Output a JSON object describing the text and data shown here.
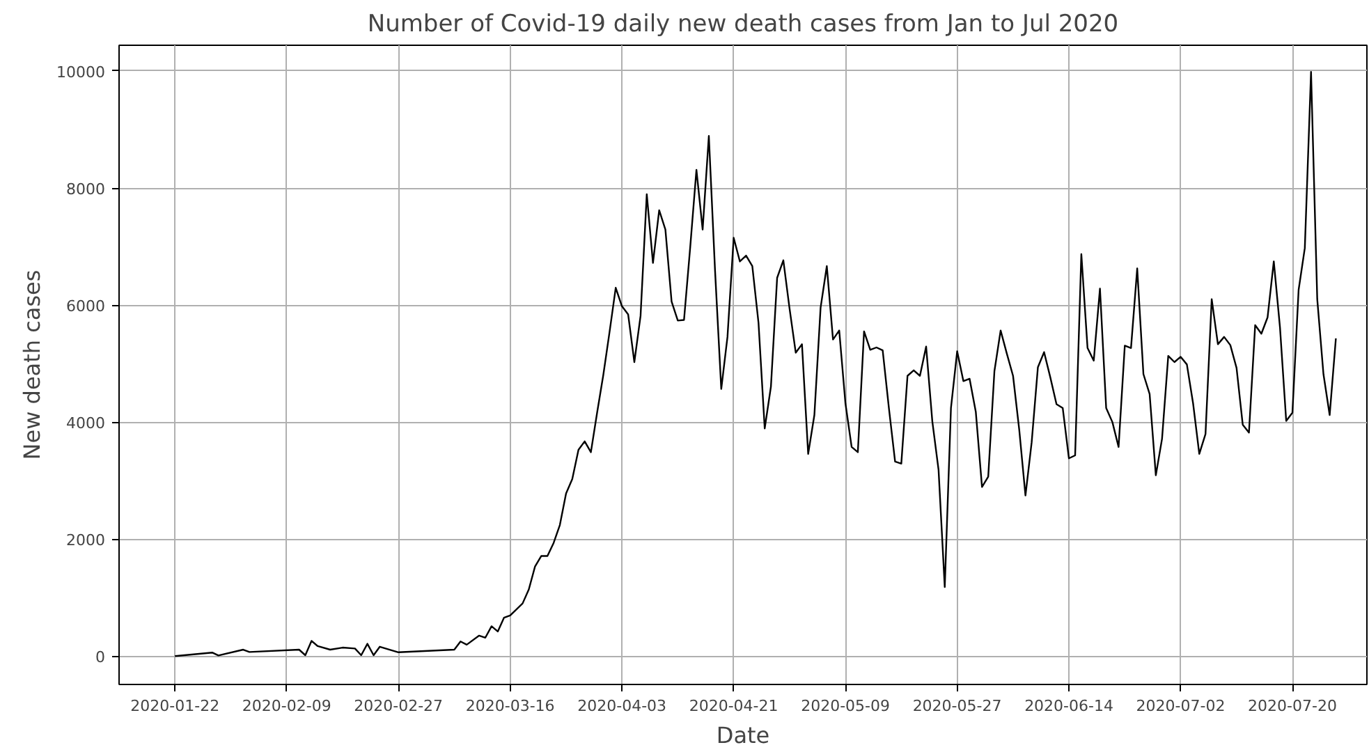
{
  "chart_data": {
    "type": "line",
    "title": "Number of Covid-19 daily new death cases from Jan to Jul 2020",
    "xlabel": "Date",
    "ylabel": "New death cases",
    "x": [
      "2020-01-22",
      "2020-01-28",
      "2020-01-29",
      "2020-02-02",
      "2020-02-03",
      "2020-02-11",
      "2020-02-12",
      "2020-02-13",
      "2020-02-14",
      "2020-02-16",
      "2020-02-18",
      "2020-02-20",
      "2020-02-21",
      "2020-02-22",
      "2020-02-23",
      "2020-02-24",
      "2020-02-27",
      "2020-03-07",
      "2020-03-08",
      "2020-03-09",
      "2020-03-11",
      "2020-03-12",
      "2020-03-13",
      "2020-03-14",
      "2020-03-15",
      "2020-03-16",
      "2020-03-18",
      "2020-03-19",
      "2020-03-20",
      "2020-03-21",
      "2020-03-22",
      "2020-03-23",
      "2020-03-24",
      "2020-03-25",
      "2020-03-26",
      "2020-03-27",
      "2020-03-28",
      "2020-03-29",
      "2020-03-30",
      "2020-03-31",
      "2020-04-01",
      "2020-04-02",
      "2020-04-03",
      "2020-04-04",
      "2020-04-05",
      "2020-04-06",
      "2020-04-07",
      "2020-04-08",
      "2020-04-09",
      "2020-04-10",
      "2020-04-11",
      "2020-04-12",
      "2020-04-13",
      "2020-04-14",
      "2020-04-15",
      "2020-04-16",
      "2020-04-17",
      "2020-04-18",
      "2020-04-19",
      "2020-04-20",
      "2020-04-21",
      "2020-04-22",
      "2020-04-23",
      "2020-04-24",
      "2020-04-25",
      "2020-04-26",
      "2020-04-27",
      "2020-04-28",
      "2020-04-29",
      "2020-04-30",
      "2020-05-01",
      "2020-05-02",
      "2020-05-03",
      "2020-05-04",
      "2020-05-05",
      "2020-05-06",
      "2020-05-07",
      "2020-05-08",
      "2020-05-09",
      "2020-05-10",
      "2020-05-11",
      "2020-05-12",
      "2020-05-13",
      "2020-05-14",
      "2020-05-15",
      "2020-05-16",
      "2020-05-17",
      "2020-05-18",
      "2020-05-19",
      "2020-05-20",
      "2020-05-21",
      "2020-05-22",
      "2020-05-23",
      "2020-05-24",
      "2020-05-25",
      "2020-05-26",
      "2020-05-27",
      "2020-05-28",
      "2020-05-29",
      "2020-05-30",
      "2020-05-31",
      "2020-06-01",
      "2020-06-02",
      "2020-06-03",
      "2020-06-04",
      "2020-06-05",
      "2020-06-06",
      "2020-06-07",
      "2020-06-08",
      "2020-06-09",
      "2020-06-10",
      "2020-06-11",
      "2020-06-12",
      "2020-06-13",
      "2020-06-14",
      "2020-06-15",
      "2020-06-16",
      "2020-06-17",
      "2020-06-18",
      "2020-06-19",
      "2020-06-20",
      "2020-06-21",
      "2020-06-22",
      "2020-06-23",
      "2020-06-24",
      "2020-06-25",
      "2020-06-26",
      "2020-06-27",
      "2020-06-28",
      "2020-06-29",
      "2020-06-30",
      "2020-07-01",
      "2020-07-02",
      "2020-07-03",
      "2020-07-04",
      "2020-07-05",
      "2020-07-06",
      "2020-07-07",
      "2020-07-08",
      "2020-07-09",
      "2020-07-10",
      "2020-07-11",
      "2020-07-12",
      "2020-07-13",
      "2020-07-14",
      "2020-07-15",
      "2020-07-16",
      "2020-07-17",
      "2020-07-18",
      "2020-07-19",
      "2020-07-20",
      "2020-07-21",
      "2020-07-22",
      "2020-07-23",
      "2020-07-24",
      "2020-07-25",
      "2020-07-26",
      "2020-07-27"
    ],
    "series": [
      {
        "color": "#000000",
        "values": [
          0,
          60,
          10,
          110,
          70,
          110,
          15,
          260,
          170,
          110,
          145,
          130,
          15,
          210,
          15,
          160,
          65,
          110,
          250,
          195,
          350,
          315,
          510,
          420,
          655,
          695,
          900,
          1140,
          1530,
          1710,
          1710,
          1935,
          2240,
          2780,
          3025,
          3525,
          3670,
          3485,
          4160,
          4805,
          5535,
          6295,
          5980,
          5840,
          5025,
          5815,
          7895,
          6720,
          7620,
          7290,
          6060,
          5735,
          5745,
          6990,
          8310,
          7290,
          8890,
          6585,
          4565,
          5455,
          7150,
          6745,
          6845,
          6665,
          5695,
          3890,
          4605,
          6465,
          6765,
          5940,
          5185,
          5330,
          3455,
          4120,
          5955,
          6665,
          5410,
          5565,
          4320,
          3575,
          3485,
          5550,
          5235,
          5275,
          5225,
          4240,
          3325,
          3290,
          4790,
          4885,
          4790,
          5290,
          4010,
          3185,
          1180,
          4240,
          5210,
          4700,
          4740,
          4175,
          2890,
          3065,
          4870,
          5565,
          5170,
          4790,
          3865,
          2745,
          3655,
          4935,
          5195,
          4765,
          4305,
          4240,
          3380,
          3430,
          6870,
          5265,
          5050,
          6280,
          4240,
          4000,
          3575,
          5305,
          5265,
          6625,
          4820,
          4480,
          3090,
          3715,
          5130,
          5025,
          5115,
          4985,
          4320,
          3455,
          3795,
          6100,
          5330,
          5455,
          5315,
          4925,
          3955,
          3820,
          5655,
          5510,
          5790,
          6745,
          5615,
          4020,
          4160,
          6260,
          6975,
          9985,
          6100,
          4820,
          4120,
          5430
        ]
      }
    ],
    "xlim": [
      "2020-01-13",
      "2020-08-01"
    ],
    "xticks": [
      "2020-01-22",
      "2020-02-09",
      "2020-02-27",
      "2020-03-16",
      "2020-04-03",
      "2020-04-21",
      "2020-05-09",
      "2020-05-27",
      "2020-06-14",
      "2020-07-02",
      "2020-07-20"
    ],
    "ylim": [
      -485,
      10440
    ],
    "yticks": [
      0,
      2000,
      4000,
      6000,
      8000,
      10000
    ],
    "grid": true,
    "marker": "none",
    "line_style": "solid"
  }
}
